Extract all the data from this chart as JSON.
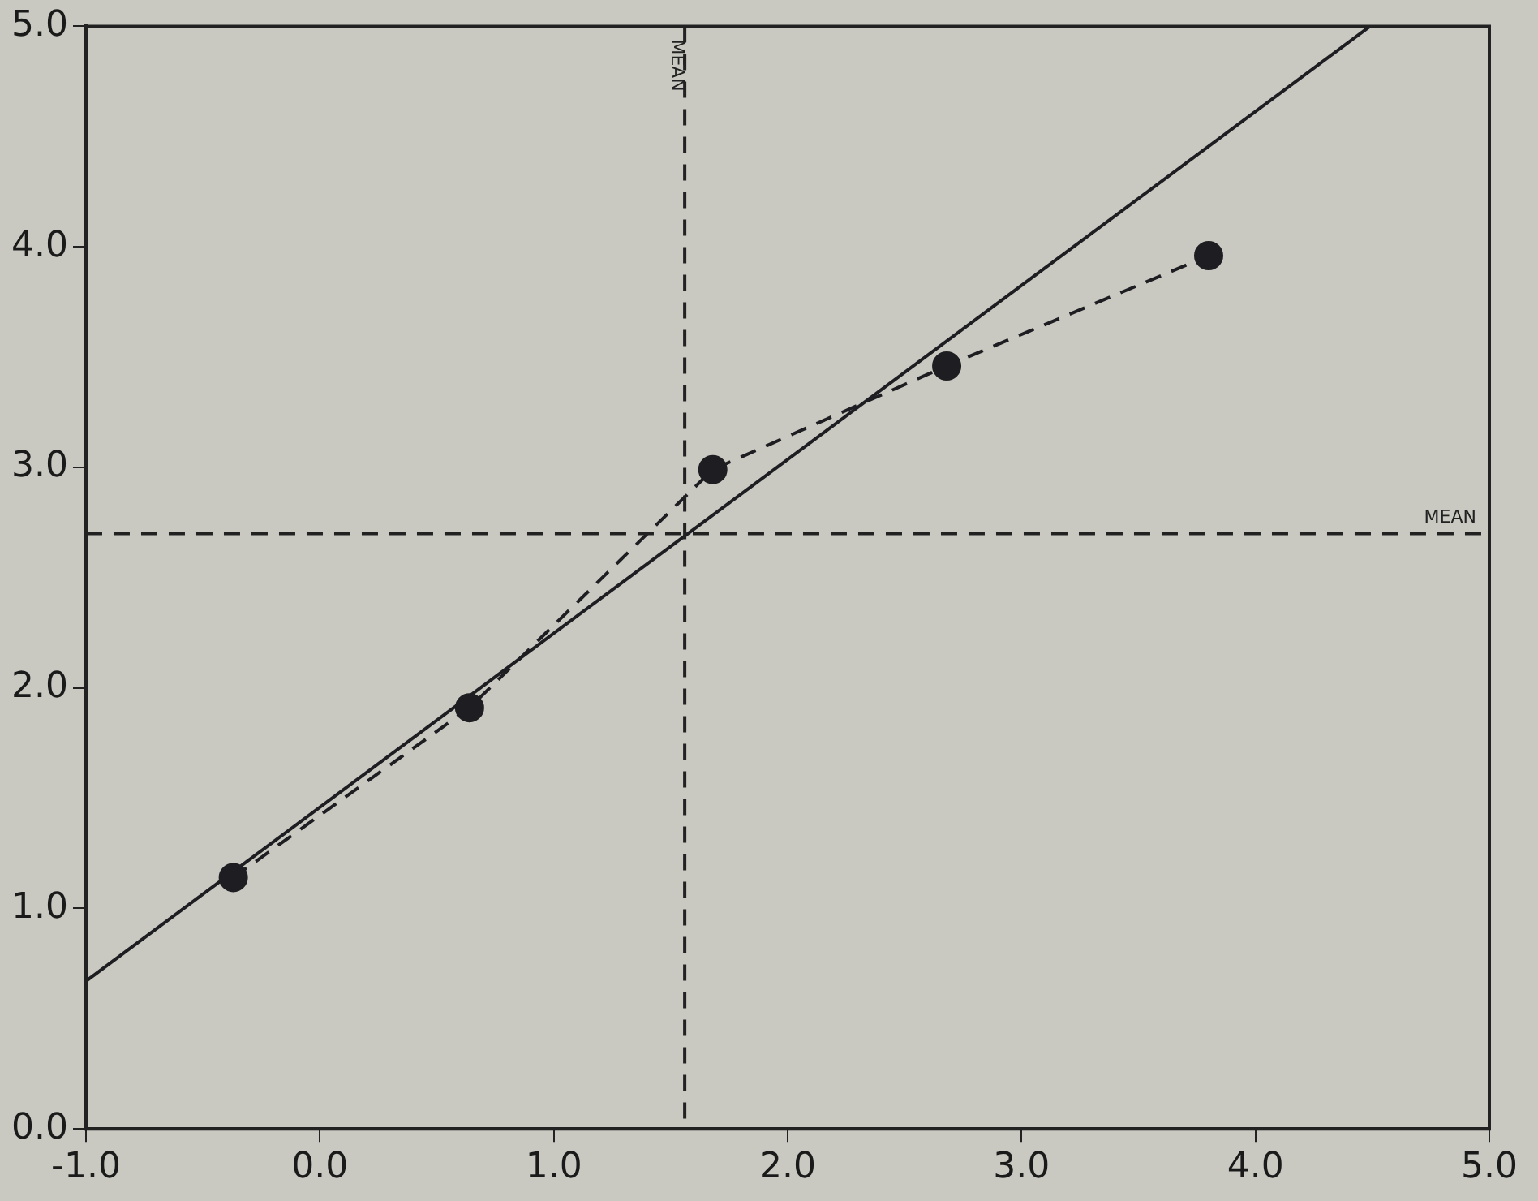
{
  "chart_data": {
    "type": "line",
    "xlim": [
      -1,
      5
    ],
    "ylim": [
      0,
      5
    ],
    "xticks": [
      {
        "value": -1,
        "label": "-1.0"
      },
      {
        "value": 0,
        "label": "0.0"
      },
      {
        "value": 1,
        "label": "1.0"
      },
      {
        "value": 2,
        "label": "2.0"
      },
      {
        "value": 3,
        "label": "3.0"
      },
      {
        "value": 4,
        "label": "4.0"
      },
      {
        "value": 5,
        "label": "5.0"
      }
    ],
    "yticks": [
      {
        "value": 0,
        "label": "0.0"
      },
      {
        "value": 1,
        "label": "1.0"
      },
      {
        "value": 2,
        "label": "2.0"
      },
      {
        "value": 3,
        "label": "3.0"
      },
      {
        "value": 4,
        "label": "4.0"
      },
      {
        "value": 5,
        "label": "5.0"
      }
    ],
    "grid": false,
    "legend": false,
    "series": [
      {
        "type": "line",
        "color": "#1e1e22",
        "x": [
          -0.37,
          0.64,
          1.68,
          2.68,
          3.8
        ],
        "values": [
          1.14,
          1.91,
          2.99,
          3.46,
          3.96
        ],
        "marker": "circle",
        "line_style": "dashed"
      },
      {
        "type": "line",
        "color": "#1e1e22",
        "x": [
          -1,
          4.49
        ],
        "values": [
          0.67,
          5.0
        ],
        "marker": "none",
        "line_style": "solid"
      }
    ],
    "ref_lines": [
      {
        "axis": "x",
        "value": 1.56,
        "label": "MEAN",
        "line_style": "dashed"
      },
      {
        "axis": "y",
        "value": 2.7,
        "label": "MEAN",
        "line_style": "dashed"
      }
    ]
  }
}
